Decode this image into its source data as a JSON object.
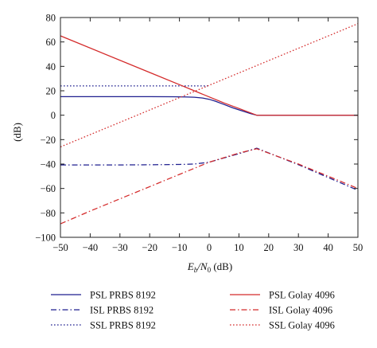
{
  "chart_data": {
    "type": "line",
    "title": "",
    "xlabel_parts": {
      "E": "E",
      "b": "b",
      "slash_N": "/N",
      "zero": "0",
      "unit": " (dB)"
    },
    "ylabel": "(dB)",
    "xlim": [
      -50,
      50
    ],
    "ylim": [
      -100,
      80
    ],
    "xticks": [
      -50,
      -40,
      -30,
      -20,
      -10,
      0,
      10,
      20,
      30,
      40,
      50
    ],
    "yticks": [
      -100,
      -80,
      -60,
      -40,
      -20,
      0,
      20,
      40,
      60,
      80
    ],
    "grid": false,
    "legend_position": "bottom",
    "colors": {
      "prbs": "#1f1f8f",
      "golay": "#d42a2a",
      "axis": "#222222"
    },
    "series": [
      {
        "name": "PSL PRBS 8192",
        "style": "solid",
        "color": "#1f1f8f",
        "x": [
          -50,
          -20,
          -12,
          -8,
          -5,
          -2,
          0,
          2,
          5,
          8,
          11,
          14,
          16,
          20,
          30,
          40,
          50
        ],
        "y": [
          15.2,
          15.2,
          15.1,
          15.0,
          14.7,
          14.0,
          13.0,
          11.5,
          8.8,
          6.0,
          3.6,
          1.2,
          0,
          0,
          0,
          0,
          0
        ]
      },
      {
        "name": "ISL PRBS 8192",
        "style": "dashdot",
        "color": "#1f1f8f",
        "x": [
          -50,
          -30,
          -20,
          -10,
          -5,
          0,
          5,
          10,
          16,
          30,
          40,
          50
        ],
        "y": [
          -40.7,
          -40.7,
          -40.6,
          -40.3,
          -40.0,
          -38.5,
          -35.0,
          -31.5,
          -27.0,
          -40.5,
          -51.0,
          -61.5
        ]
      },
      {
        "name": "SSL PRBS 8192",
        "style": "dotted",
        "color": "#1f1f8f",
        "x": [
          -50,
          0
        ],
        "y": [
          24.0,
          24.0
        ]
      },
      {
        "name": "PSL Golay 4096",
        "style": "solid",
        "color": "#d42a2a",
        "x": [
          -50,
          -20,
          -10,
          -5,
          0,
          5,
          10,
          16,
          20,
          30,
          40,
          50
        ],
        "y": [
          65.0,
          35.0,
          25.0,
          20.0,
          15.0,
          10.0,
          5.5,
          0,
          0,
          0,
          0,
          0
        ]
      },
      {
        "name": "ISL Golay 4096",
        "style": "dashdot",
        "color": "#d42a2a",
        "x": [
          -50,
          -40,
          -30,
          -20,
          -10,
          0,
          10,
          16,
          30,
          40,
          50
        ],
        "y": [
          -89.0,
          -78.5,
          -68.5,
          -58.5,
          -48.5,
          -38.5,
          -31.0,
          -27.5,
          -40.0,
          -50.0,
          -60.0
        ]
      },
      {
        "name": "SSL Golay 4096",
        "style": "dotted",
        "color": "#d42a2a",
        "x": [
          -50,
          -40,
          -30,
          -20,
          -10,
          0,
          10,
          20,
          30,
          40,
          50
        ],
        "y": [
          -26.0,
          -15.9,
          -5.8,
          4.3,
          14.4,
          24.5,
          34.6,
          44.7,
          54.8,
          64.9,
          75.0
        ]
      }
    ]
  }
}
